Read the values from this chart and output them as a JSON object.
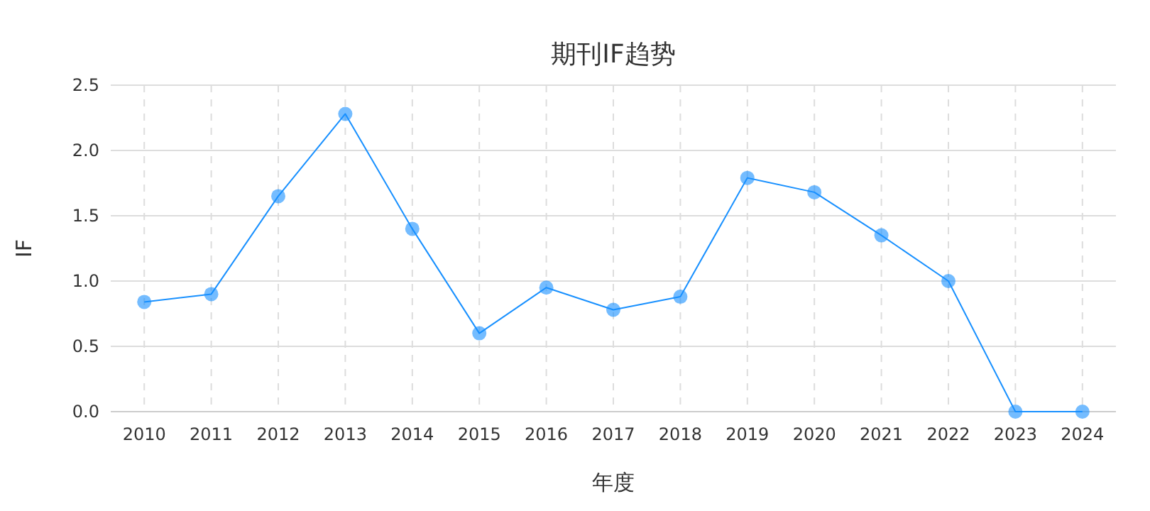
{
  "chart_data": {
    "type": "line",
    "title": "期刊IF趋势",
    "xlabel": "年度",
    "ylabel": "IF",
    "categories": [
      "2010",
      "2011",
      "2012",
      "2013",
      "2014",
      "2015",
      "2016",
      "2017",
      "2018",
      "2019",
      "2020",
      "2021",
      "2022",
      "2023",
      "2024"
    ],
    "series": [
      {
        "color": "#1890ff",
        "values": [
          0.84,
          0.9,
          1.65,
          2.28,
          1.4,
          0.6,
          0.95,
          0.78,
          0.88,
          1.79,
          1.68,
          1.35,
          1.0,
          0,
          0
        ]
      }
    ],
    "ylim": [
      0,
      2.5
    ],
    "yticks": [
      {
        "value": 0,
        "label": "0.0"
      },
      0.5,
      {
        "value": 1,
        "label": "1.0"
      },
      1.5,
      {
        "value": 2,
        "label": "2.0"
      },
      2.5
    ],
    "grid": true,
    "marker": "circle",
    "line_style": "solid"
  }
}
